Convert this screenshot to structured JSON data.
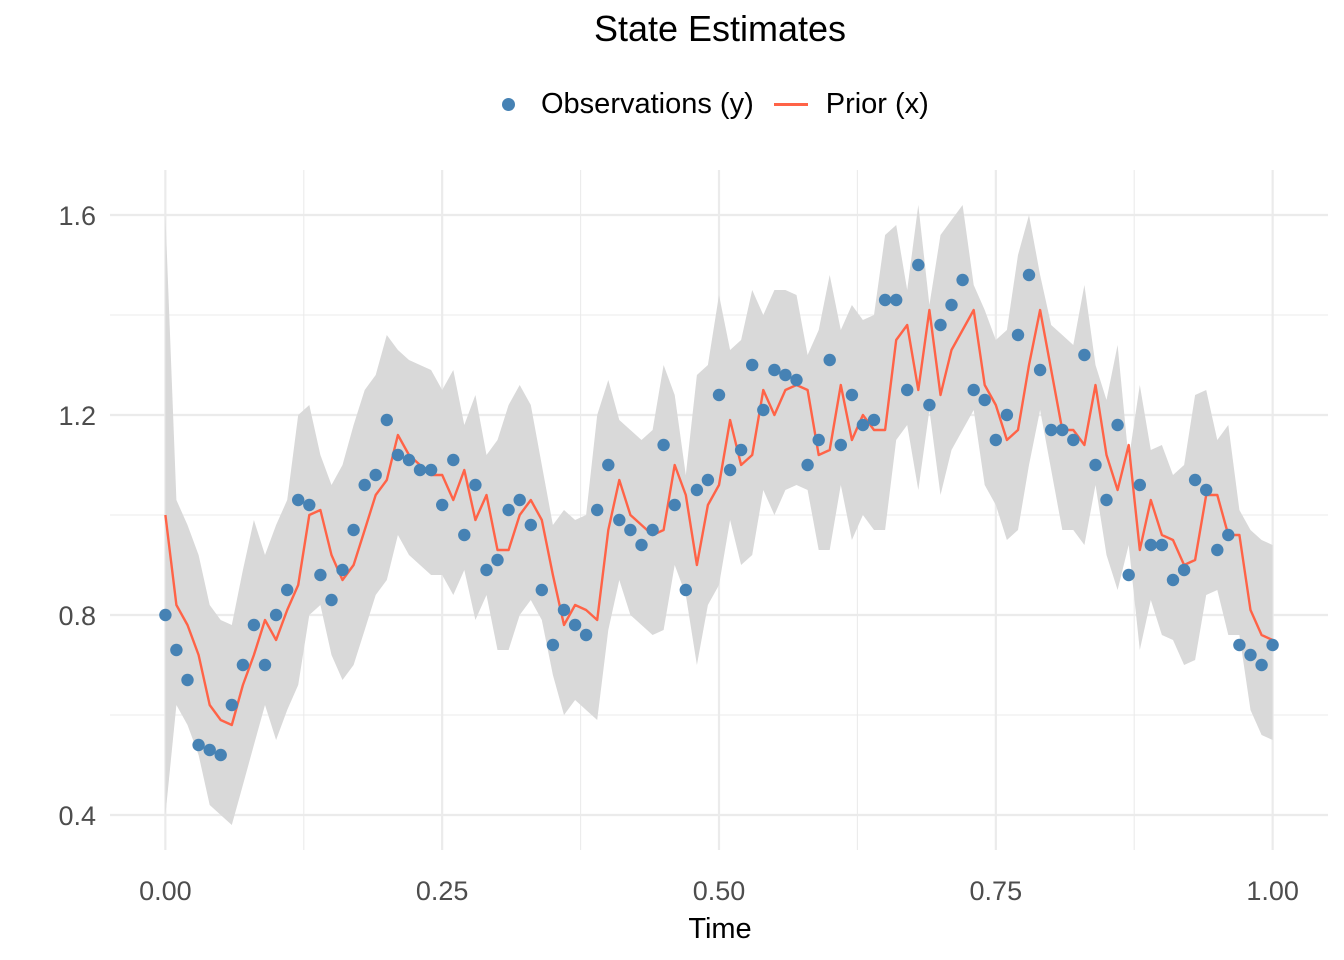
{
  "chart_data": {
    "type": "line",
    "title": "State Estimates",
    "xlabel": "Time",
    "ylabel": "",
    "xlim": [
      -0.05,
      1.05
    ],
    "ylim": [
      0.33,
      1.69
    ],
    "x_ticks": [
      0.0,
      0.25,
      0.5,
      0.75,
      1.0
    ],
    "x_tick_labels": [
      "0.00",
      "0.25",
      "0.50",
      "0.75",
      "1.00"
    ],
    "y_ticks": [
      0.4,
      0.8,
      1.2,
      1.6
    ],
    "y_tick_labels": [
      "0.4",
      "0.8",
      "1.2",
      "1.6"
    ],
    "grid": true,
    "legend_position": "top",
    "colors": {
      "observations": "#4682B4",
      "prior": "#FF6347",
      "band": "#d9d9d9",
      "grid": "#ebebeb"
    },
    "x": [
      0.0,
      0.01,
      0.02,
      0.03,
      0.04,
      0.05,
      0.06,
      0.07,
      0.08,
      0.09,
      0.1,
      0.11,
      0.12,
      0.13,
      0.14,
      0.15,
      0.16,
      0.17,
      0.18,
      0.19,
      0.2,
      0.21,
      0.22,
      0.23,
      0.24,
      0.25,
      0.26,
      0.27,
      0.28,
      0.29,
      0.3,
      0.31,
      0.32,
      0.33,
      0.34,
      0.35,
      0.36,
      0.37,
      0.38,
      0.39,
      0.4,
      0.41,
      0.42,
      0.43,
      0.44,
      0.45,
      0.46,
      0.47,
      0.48,
      0.49,
      0.5,
      0.51,
      0.52,
      0.53,
      0.54,
      0.55,
      0.56,
      0.57,
      0.58,
      0.59,
      0.6,
      0.61,
      0.62,
      0.63,
      0.64,
      0.65,
      0.66,
      0.67,
      0.68,
      0.69,
      0.7,
      0.71,
      0.72,
      0.73,
      0.74,
      0.75,
      0.76,
      0.77,
      0.78,
      0.79,
      0.8,
      0.81,
      0.82,
      0.83,
      0.84,
      0.85,
      0.86,
      0.87,
      0.88,
      0.89,
      0.9,
      0.91,
      0.92,
      0.93,
      0.94,
      0.95,
      0.96,
      0.97,
      0.98,
      0.99,
      1.0
    ],
    "series": [
      {
        "name": "Observations (y)",
        "kind": "points",
        "values": [
          0.8,
          0.73,
          0.67,
          0.54,
          0.53,
          0.52,
          0.62,
          0.7,
          0.78,
          0.7,
          0.8,
          0.85,
          1.03,
          1.02,
          0.88,
          0.83,
          0.89,
          0.97,
          1.06,
          1.08,
          1.19,
          1.12,
          1.11,
          1.09,
          1.09,
          1.02,
          1.11,
          0.96,
          1.06,
          0.89,
          0.91,
          1.01,
          1.03,
          0.98,
          0.85,
          0.74,
          0.81,
          0.78,
          0.76,
          1.01,
          1.1,
          0.99,
          0.97,
          0.94,
          0.97,
          1.14,
          1.02,
          0.85,
          1.05,
          1.07,
          1.24,
          1.09,
          1.13,
          1.3,
          1.21,
          1.29,
          1.28,
          1.27,
          1.1,
          1.15,
          1.31,
          1.14,
          1.24,
          1.18,
          1.19,
          1.43,
          1.43,
          1.25,
          1.5,
          1.22,
          1.38,
          1.42,
          1.47,
          1.25,
          1.23,
          1.15,
          1.2,
          1.36,
          1.48,
          1.29,
          1.17,
          1.17,
          1.15,
          1.32,
          1.1,
          1.03,
          1.18,
          0.88,
          1.06,
          0.94,
          0.94,
          0.87,
          0.89,
          1.07,
          1.05,
          0.93,
          0.96,
          0.74,
          0.72,
          0.7,
          0.74
        ]
      },
      {
        "name": "Prior (x)",
        "kind": "line",
        "values": [
          1.0,
          0.82,
          0.78,
          0.72,
          0.62,
          0.59,
          0.58,
          0.66,
          0.72,
          0.79,
          0.75,
          0.81,
          0.86,
          1.0,
          1.01,
          0.92,
          0.87,
          0.9,
          0.97,
          1.04,
          1.07,
          1.16,
          1.12,
          1.1,
          1.08,
          1.08,
          1.03,
          1.09,
          0.99,
          1.04,
          0.93,
          0.93,
          1.0,
          1.03,
          0.99,
          0.88,
          0.78,
          0.82,
          0.81,
          0.79,
          0.97,
          1.07,
          1.0,
          0.98,
          0.96,
          0.97,
          1.1,
          1.04,
          0.9,
          1.02,
          1.06,
          1.19,
          1.1,
          1.12,
          1.25,
          1.2,
          1.25,
          1.26,
          1.25,
          1.12,
          1.13,
          1.26,
          1.15,
          1.2,
          1.17,
          1.17,
          1.35,
          1.38,
          1.25,
          1.41,
          1.24,
          1.33,
          1.37,
          1.41,
          1.26,
          1.22,
          1.15,
          1.17,
          1.3,
          1.41,
          1.29,
          1.17,
          1.17,
          1.14,
          1.26,
          1.12,
          1.05,
          1.14,
          0.93,
          1.03,
          0.96,
          0.95,
          0.9,
          0.91,
          1.04,
          1.04,
          0.96,
          0.96,
          0.81,
          0.76,
          0.75
        ]
      }
    ],
    "band": {
      "upper": [
        1.6,
        1.03,
        0.98,
        0.92,
        0.82,
        0.79,
        0.78,
        0.89,
        0.99,
        0.92,
        0.98,
        1.03,
        1.2,
        1.22,
        1.12,
        1.06,
        1.1,
        1.18,
        1.25,
        1.28,
        1.36,
        1.33,
        1.31,
        1.3,
        1.29,
        1.25,
        1.29,
        1.18,
        1.24,
        1.12,
        1.15,
        1.22,
        1.26,
        1.22,
        1.1,
        0.98,
        1.01,
        0.99,
        1.0,
        1.2,
        1.27,
        1.19,
        1.17,
        1.15,
        1.17,
        1.3,
        1.24,
        1.08,
        1.28,
        1.3,
        1.44,
        1.33,
        1.35,
        1.45,
        1.4,
        1.45,
        1.45,
        1.44,
        1.32,
        1.37,
        1.48,
        1.37,
        1.42,
        1.39,
        1.4,
        1.56,
        1.58,
        1.45,
        1.62,
        1.42,
        1.56,
        1.59,
        1.62,
        1.46,
        1.41,
        1.35,
        1.37,
        1.52,
        1.6,
        1.48,
        1.38,
        1.36,
        1.34,
        1.46,
        1.3,
        1.23,
        1.34,
        1.11,
        1.26,
        1.13,
        1.14,
        1.08,
        1.1,
        1.24,
        1.25,
        1.15,
        1.18,
        1.01,
        0.97,
        0.95,
        0.94
      ],
      "lower": [
        0.4,
        0.62,
        0.58,
        0.52,
        0.42,
        0.4,
        0.38,
        0.46,
        0.54,
        0.62,
        0.55,
        0.61,
        0.66,
        0.8,
        0.82,
        0.72,
        0.67,
        0.7,
        0.77,
        0.84,
        0.87,
        0.96,
        0.92,
        0.9,
        0.88,
        0.88,
        0.84,
        0.89,
        0.79,
        0.84,
        0.73,
        0.73,
        0.8,
        0.83,
        0.79,
        0.68,
        0.6,
        0.63,
        0.61,
        0.59,
        0.77,
        0.87,
        0.8,
        0.78,
        0.76,
        0.77,
        0.9,
        0.84,
        0.7,
        0.82,
        0.86,
        0.99,
        0.9,
        0.92,
        1.05,
        1.0,
        1.05,
        1.06,
        1.05,
        0.93,
        0.93,
        1.06,
        0.95,
        1.0,
        0.97,
        0.97,
        1.15,
        1.18,
        1.05,
        1.21,
        1.04,
        1.13,
        1.17,
        1.21,
        1.06,
        1.02,
        0.95,
        0.97,
        1.1,
        1.21,
        1.09,
        0.97,
        0.97,
        0.94,
        1.06,
        0.92,
        0.85,
        0.94,
        0.73,
        0.83,
        0.76,
        0.75,
        0.7,
        0.71,
        0.84,
        0.85,
        0.76,
        0.76,
        0.61,
        0.56,
        0.55
      ]
    }
  }
}
